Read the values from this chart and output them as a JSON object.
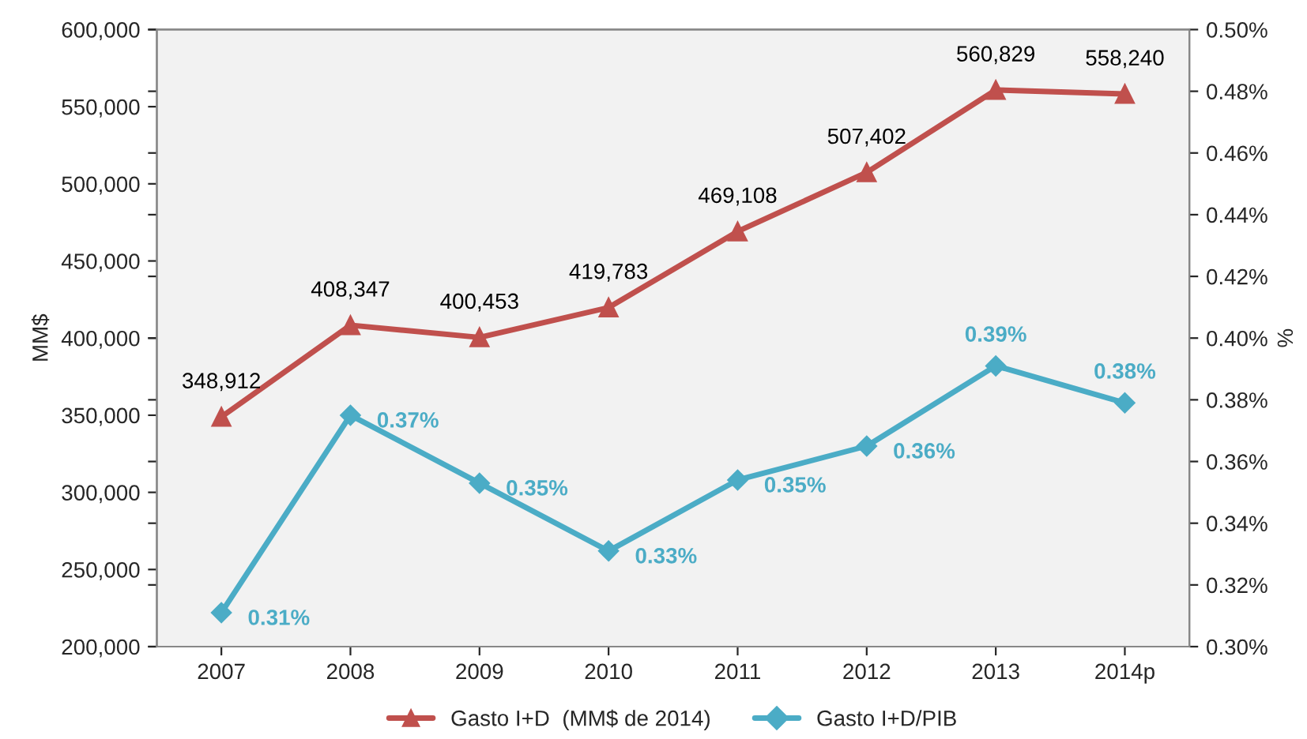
{
  "chart_data": {
    "type": "line",
    "ylabel": "MM$",
    "y2label": "%",
    "categories": [
      "2007",
      "2008",
      "2009",
      "2010",
      "2011",
      "2012",
      "2013",
      "2014p"
    ],
    "series": [
      {
        "name": "Gasto I+D  (MM$ de 2014)",
        "color": "#c0504d",
        "marker": "triangle",
        "values": [
          348912,
          408347,
          400453,
          419783,
          469108,
          507402,
          560829,
          558240
        ],
        "value_labels": [
          "348,912",
          "408,347",
          "400,453",
          "419,783",
          "469,108",
          "507,402",
          "560,829",
          "558,240"
        ]
      },
      {
        "name": "Gasto I+D/PIB",
        "color": "#4bacc6",
        "marker": "diamond",
        "axis": "y2",
        "values": [
          0.311,
          0.375,
          0.353,
          0.331,
          0.354,
          0.365,
          0.391,
          0.379
        ],
        "value_labels": [
          "0.31%",
          "0.37%",
          "0.35%",
          "0.33%",
          "0.35%",
          "0.36%",
          "0.39%",
          "0.38%"
        ]
      }
    ],
    "ylim": [
      200000,
      600000
    ],
    "yticks": [
      {
        "value": 200000,
        "label": "200,000"
      },
      {
        "value": 250000,
        "label": "250,000"
      },
      {
        "value": 300000,
        "label": "300,000"
      },
      {
        "value": 350000,
        "label": "350,000"
      },
      {
        "value": 400000,
        "label": "400,000"
      },
      {
        "value": 450000,
        "label": "450,000"
      },
      {
        "value": 500000,
        "label": "500,000"
      },
      {
        "value": 550000,
        "label": "550,000"
      },
      {
        "value": 600000,
        "label": "600,000"
      }
    ],
    "y2lim": [
      0.3,
      0.5
    ],
    "y2ticks": [
      {
        "value": 0.3,
        "label": "0.30%"
      },
      {
        "value": 0.32,
        "label": "0.32%"
      },
      {
        "value": 0.34,
        "label": "0.34%"
      },
      {
        "value": 0.36,
        "label": "0.36%"
      },
      {
        "value": 0.38,
        "label": "0.38%"
      },
      {
        "value": 0.4,
        "label": "0.40%"
      },
      {
        "value": 0.42,
        "label": "0.42%"
      },
      {
        "value": 0.44,
        "label": "0.44%"
      },
      {
        "value": 0.46,
        "label": "0.46%"
      },
      {
        "value": 0.48,
        "label": "0.48%"
      },
      {
        "value": 0.5,
        "label": "0.50%"
      }
    ],
    "grid": false,
    "legend": "bottom"
  }
}
